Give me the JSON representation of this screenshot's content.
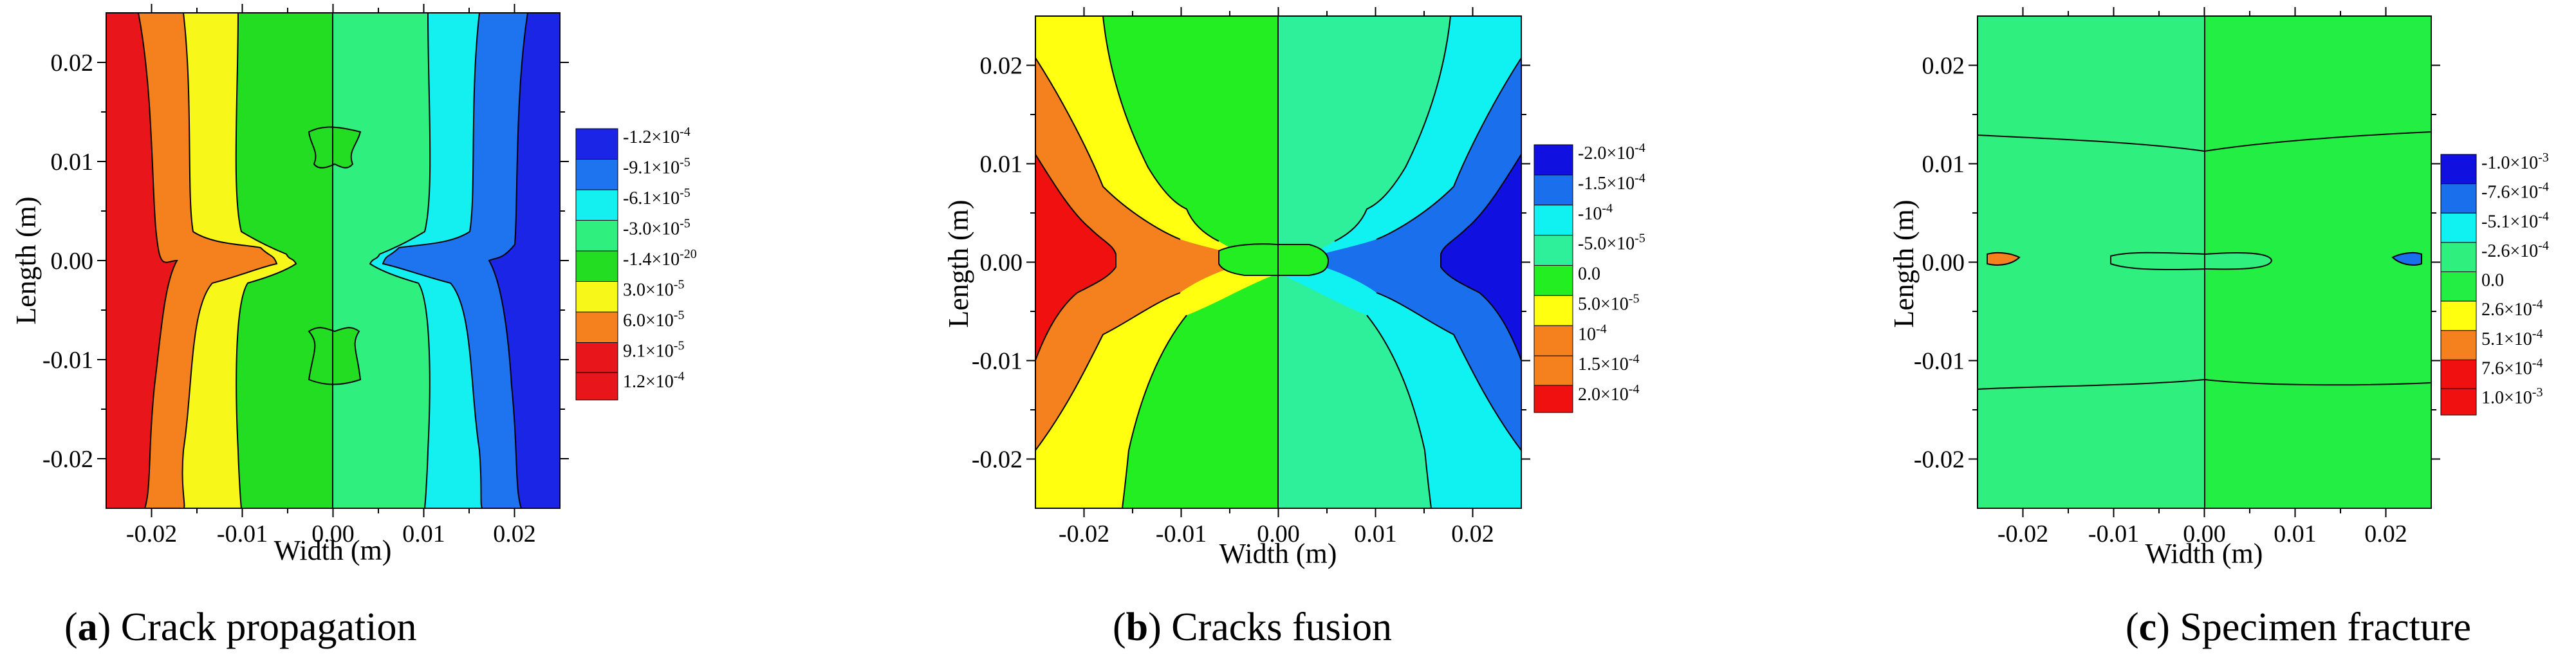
{
  "panels": [
    {
      "id": "a",
      "caption_letter": "a",
      "caption_text": "Crack propagation",
      "colors": {
        "fill_left": "#e8151a",
        "fill_right": "#1a25e6"
      }
    },
    {
      "id": "b",
      "caption_letter": "b",
      "caption_text": "Cracks fusion",
      "colors": {
        "fill_left": "#f01010",
        "fill_right": "#1330ee"
      }
    },
    {
      "id": "c",
      "caption_letter": "c",
      "caption_text": "Specimen fracture",
      "colors": {
        "fill_left": "#22ee44",
        "fill_right": "#2ff07f"
      }
    }
  ],
  "chart_data": [
    {
      "type": "heatmap",
      "title": "",
      "xlabel": "Width (m)",
      "ylabel": "Length (m)",
      "xlim": [
        -0.025,
        0.025
      ],
      "ylim": [
        -0.025,
        0.025
      ],
      "x_ticks": [
        "-0.02",
        "-0.01",
        "0.00",
        "0.01",
        "0.02"
      ],
      "y_ticks": [
        "0.02",
        "0.01",
        "0.00",
        "-0.01",
        "-0.02"
      ],
      "legend_position": "right",
      "legend": [
        {
          "label_main": "-1.2×10",
          "label_exp": "-4",
          "color": "#1a25e6"
        },
        {
          "label_main": "-9.1×10",
          "label_exp": "-5",
          "color": "#1e73ef"
        },
        {
          "label_main": "-6.1×10",
          "label_exp": "-5",
          "color": "#14f0f0"
        },
        {
          "label_main": "-3.0×10",
          "label_exp": "-5",
          "color": "#2ff07f"
        },
        {
          "label_main": "-1.4×10",
          "label_exp": "-20",
          "color": "#22dd22"
        },
        {
          "label_main": "3.0×10",
          "label_exp": "-5",
          "color": "#f7f719"
        },
        {
          "label_main": "6.0×10",
          "label_exp": "-5",
          "color": "#f5801e"
        },
        {
          "label_main": "9.1×10",
          "label_exp": "-5",
          "color": "#e8151a"
        },
        {
          "label_main": "1.2×10",
          "label_exp": "-4",
          "color": "#e8151a"
        }
      ]
    },
    {
      "type": "heatmap",
      "title": "",
      "xlabel": "Width (m)",
      "ylabel": "Length (m)",
      "xlim": [
        -0.025,
        0.025
      ],
      "ylim": [
        -0.025,
        0.025
      ],
      "x_ticks": [
        "-0.02",
        "-0.01",
        "0.00",
        "0.01",
        "0.02"
      ],
      "y_ticks": [
        "0.02",
        "0.01",
        "0.00",
        "-0.01",
        "-0.02"
      ],
      "legend_position": "right",
      "legend": [
        {
          "label_main": "-2.0×10",
          "label_exp": "-4",
          "color": "#1010e0"
        },
        {
          "label_main": "-1.5×10",
          "label_exp": "-4",
          "color": "#1a6fec"
        },
        {
          "label_main": "-10",
          "label_exp": "-4",
          "color": "#10f2f2"
        },
        {
          "label_main": "-5.0×10",
          "label_exp": "-5",
          "color": "#2ef09a"
        },
        {
          "label_main": "0.0",
          "label_exp": "",
          "color": "#22ee22"
        },
        {
          "label_main": "5.0×10",
          "label_exp": "-5",
          "color": "#ffff10"
        },
        {
          "label_main": "10",
          "label_exp": "-4",
          "color": "#f5801e"
        },
        {
          "label_main": "1.5×10",
          "label_exp": "-4",
          "color": "#f5801e"
        },
        {
          "label_main": "2.0×10",
          "label_exp": "-4",
          "color": "#f01010"
        }
      ]
    },
    {
      "type": "heatmap",
      "title": "",
      "xlabel": "Width (m)",
      "ylabel": "Length (m)",
      "xlim": [
        -0.025,
        0.025
      ],
      "ylim": [
        -0.025,
        0.025
      ],
      "x_ticks": [
        "-0.02",
        "-0.01",
        "0.00",
        "0.01",
        "0.02"
      ],
      "y_ticks": [
        "0.02",
        "0.01",
        "0.00",
        "-0.01",
        "-0.02"
      ],
      "legend_position": "right",
      "legend": [
        {
          "label_main": "-1.0×10",
          "label_exp": "-3",
          "color": "#1010e0"
        },
        {
          "label_main": "-7.6×10",
          "label_exp": "-4",
          "color": "#1a6fec"
        },
        {
          "label_main": "-5.1×10",
          "label_exp": "-4",
          "color": "#10f2f2"
        },
        {
          "label_main": "-2.6×10",
          "label_exp": "-4",
          "color": "#2ff07f"
        },
        {
          "label_main": "0.0",
          "label_exp": "",
          "color": "#22ee44"
        },
        {
          "label_main": "2.6×10",
          "label_exp": "-4",
          "color": "#ffff10"
        },
        {
          "label_main": "5.1×10",
          "label_exp": "-4",
          "color": "#f5801e"
        },
        {
          "label_main": "7.6×10",
          "label_exp": "-4",
          "color": "#f01010"
        },
        {
          "label_main": "1.0×10",
          "label_exp": "-3",
          "color": "#f01010"
        }
      ]
    }
  ]
}
